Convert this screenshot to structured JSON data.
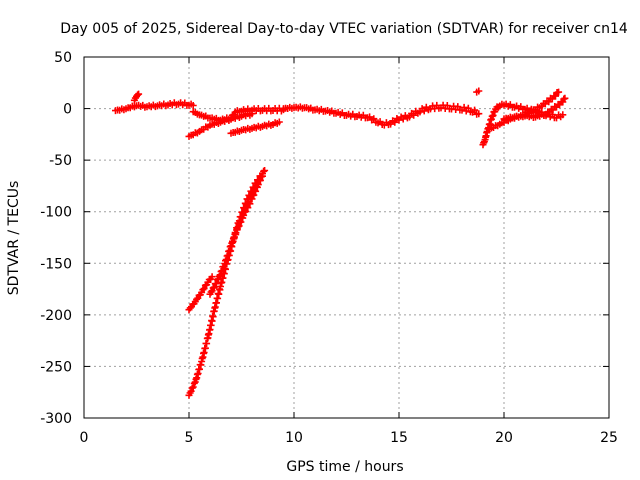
{
  "chart_data": {
    "type": "scatter",
    "title": "Day 005 of 2025, Sidereal Day-to-day VTEC variation (SDTVAR) for receiver cn14",
    "xlabel": "GPS time / hours",
    "ylabel": "SDTVAR / TECUs",
    "xlim": [
      0,
      25
    ],
    "ylim": [
      -300,
      50
    ],
    "xticks": [
      0,
      5,
      10,
      15,
      20,
      25
    ],
    "yticks": [
      -300,
      -250,
      -200,
      -150,
      -100,
      -50,
      0,
      50
    ],
    "grid": true,
    "marker": "+",
    "color": "#ff0000",
    "series": [
      {
        "segments": [
          [
            [
              1.5,
              -2
            ],
            [
              2.0,
              0
            ],
            [
              2.5,
              3
            ],
            [
              3.0,
              2
            ],
            [
              3.5,
              3
            ],
            [
              4.0,
              4
            ],
            [
              4.5,
              5
            ],
            [
              5.0,
              4
            ],
            [
              5.2,
              3
            ]
          ],
          [
            [
              2.4,
              8
            ],
            [
              2.5,
              12
            ],
            [
              2.6,
              14
            ]
          ],
          [
            [
              5.2,
              -3
            ],
            [
              5.5,
              -6
            ],
            [
              6.0,
              -9
            ],
            [
              6.5,
              -11
            ],
            [
              7.0,
              -9
            ],
            [
              7.2,
              -3
            ],
            [
              7.5,
              -2
            ],
            [
              8.0,
              -1
            ],
            [
              8.5,
              -1
            ],
            [
              9.0,
              -1
            ],
            [
              9.5,
              -1
            ]
          ],
          [
            [
              5.0,
              -27
            ],
            [
              5.5,
              -22
            ],
            [
              6.0,
              -16
            ],
            [
              6.5,
              -13
            ],
            [
              7.0,
              -10
            ],
            [
              7.5,
              -7
            ],
            [
              8.0,
              -5
            ]
          ],
          [
            [
              7.0,
              -24
            ],
            [
              7.5,
              -21
            ],
            [
              8.0,
              -19
            ],
            [
              8.5,
              -17
            ],
            [
              9.0,
              -15
            ],
            [
              9.3,
              -13
            ]
          ],
          [
            [
              9.5,
              0
            ],
            [
              10.0,
              1
            ],
            [
              10.5,
              1
            ],
            [
              11.0,
              -1
            ],
            [
              11.5,
              -2
            ],
            [
              12.0,
              -4
            ],
            [
              12.5,
              -6
            ],
            [
              13.0,
              -7
            ],
            [
              13.5,
              -8
            ],
            [
              14.0,
              -13
            ],
            [
              14.3,
              -15
            ],
            [
              14.6,
              -14
            ],
            [
              15.0,
              -10
            ],
            [
              15.5,
              -7
            ],
            [
              16.0,
              -2
            ],
            [
              16.5,
              1
            ],
            [
              17.0,
              2
            ],
            [
              17.5,
              1
            ],
            [
              18.0,
              0
            ],
            [
              18.5,
              -2
            ],
            [
              18.8,
              -5
            ]
          ],
          [
            [
              18.7,
              16
            ],
            [
              18.8,
              17
            ]
          ],
          [
            [
              19.0,
              -35
            ],
            [
              19.1,
              -30
            ],
            [
              19.2,
              -22
            ],
            [
              19.4,
              -10
            ],
            [
              19.6,
              0
            ],
            [
              19.8,
              3
            ],
            [
              20.0,
              4
            ],
            [
              20.5,
              2
            ],
            [
              21.0,
              0
            ],
            [
              21.5,
              -3
            ],
            [
              22.0,
              -6
            ],
            [
              22.5,
              -8
            ],
            [
              22.8,
              -6
            ]
          ],
          [
            [
              19.3,
              -20
            ],
            [
              19.8,
              -15
            ],
            [
              20.3,
              -10
            ],
            [
              20.8,
              -7
            ],
            [
              21.3,
              -3
            ],
            [
              21.8,
              3
            ],
            [
              22.3,
              10
            ],
            [
              22.6,
              16
            ]
          ],
          [
            [
              20.0,
              -10
            ],
            [
              20.5,
              -8
            ],
            [
              21.0,
              -7
            ],
            [
              21.5,
              -8
            ],
            [
              22.0,
              -5
            ],
            [
              22.5,
              2
            ],
            [
              22.8,
              7
            ],
            [
              22.9,
              10
            ]
          ],
          [
            [
              5.0,
              -278
            ],
            [
              5.3,
              -265
            ],
            [
              5.6,
              -245
            ],
            [
              5.9,
              -222
            ],
            [
              6.2,
              -196
            ],
            [
              6.5,
              -172
            ],
            [
              6.8,
              -150
            ],
            [
              7.1,
              -128
            ],
            [
              7.4,
              -108
            ],
            [
              7.8,
              -87
            ],
            [
              8.2,
              -72
            ],
            [
              8.5,
              -63
            ]
          ],
          [
            [
              5.0,
              -195
            ],
            [
              5.3,
              -187
            ],
            [
              5.6,
              -178
            ],
            [
              5.9,
              -168
            ],
            [
              6.1,
              -163
            ]
          ],
          [
            [
              6.0,
              -180
            ],
            [
              6.4,
              -165
            ],
            [
              6.7,
              -150
            ],
            [
              7.0,
              -133
            ],
            [
              7.3,
              -117
            ],
            [
              7.6,
              -103
            ],
            [
              8.0,
              -87
            ],
            [
              8.3,
              -73
            ],
            [
              8.6,
              -60
            ]
          ]
        ]
      }
    ]
  }
}
